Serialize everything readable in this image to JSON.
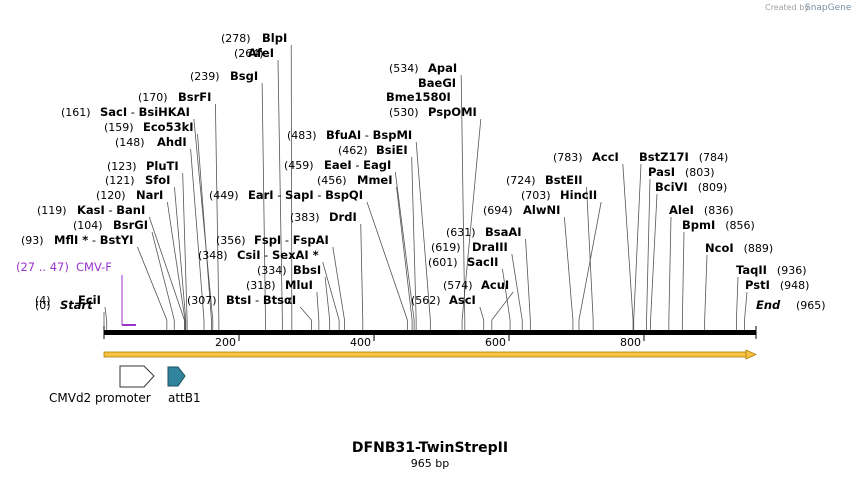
{
  "credit": {
    "created_by": "Created by",
    "brand": "SnapGene"
  },
  "sequence": {
    "name": "DFNB31-TwinStrepII",
    "length_label": "965 bp",
    "length": 965
  },
  "ruler": {
    "ticks": [
      "200",
      "400",
      "600",
      "800"
    ]
  },
  "ends": [
    {
      "pos": "(0)",
      "name": "Start"
    },
    {
      "pos": "(965)",
      "name": "End"
    }
  ],
  "primer": {
    "range": "(27 .. 47)",
    "name": "CMV-F",
    "color": "#9933cc"
  },
  "features": [
    {
      "name": "CMVd2 promoter",
      "fill": "#ffffff",
      "stroke": "#333333"
    },
    {
      "name": "attB1",
      "fill": "#31849b",
      "stroke": "#1a4f5e"
    }
  ],
  "sites_left": [
    {
      "pos": "(278)",
      "names": [
        "BlpI"
      ]
    },
    {
      "pos": "(264)",
      "names": [
        "AfeI"
      ]
    },
    {
      "pos": "(239)",
      "names": [
        "BsgI"
      ]
    },
    {
      "pos": "(170)",
      "names": [
        "BsrFI"
      ]
    },
    {
      "pos": "(161)",
      "names": [
        "SacI",
        "BsiHKAI"
      ]
    },
    {
      "pos": "(159)",
      "names": [
        "Eco53kI"
      ]
    },
    {
      "pos": "(148)",
      "names": [
        "AhdI"
      ]
    },
    {
      "pos": "(123)",
      "names": [
        "PluTI"
      ]
    },
    {
      "pos": "(121)",
      "names": [
        "SfoI"
      ]
    },
    {
      "pos": "(120)",
      "names": [
        "NarI"
      ]
    },
    {
      "pos": "(119)",
      "names": [
        "KasI",
        "BanI"
      ]
    },
    {
      "pos": "(104)",
      "names": [
        "BsrGI"
      ]
    },
    {
      "pos": "(93)",
      "names": [
        "MflI *",
        "BstYI"
      ]
    },
    {
      "pos": "(4)",
      "names": [
        "EciI"
      ]
    }
  ],
  "sites_mid": [
    {
      "pos": "(483)",
      "names": [
        "BfuAI",
        "BspMI"
      ]
    },
    {
      "pos": "(462)",
      "names": [
        "BsiEI"
      ]
    },
    {
      "pos": "(459)",
      "names": [
        "EaeI",
        "EagI"
      ]
    },
    {
      "pos": "(456)",
      "names": [
        "MmeI"
      ]
    },
    {
      "pos": "(449)",
      "names": [
        "EarI",
        "SapI",
        "BspQI"
      ]
    },
    {
      "pos": "(383)",
      "names": [
        "DrdI"
      ]
    },
    {
      "pos": "(356)",
      "names": [
        "FspI",
        "FspAI"
      ]
    },
    {
      "pos": "(348)",
      "names": [
        "CsiI",
        "SexAI *"
      ]
    },
    {
      "pos": "(334)",
      "names": [
        "BbsI"
      ]
    },
    {
      "pos": "(318)",
      "names": [
        "MluI"
      ]
    },
    {
      "pos": "(307)",
      "names": [
        "BtsI",
        "BtsαI"
      ]
    }
  ],
  "sites_right1": [
    {
      "pos": "(534)",
      "names": [
        "ApaI"
      ]
    },
    {
      "pos": "",
      "names": [
        "BaeGI"
      ]
    },
    {
      "pos": "",
      "names": [
        "Bme1580I"
      ]
    },
    {
      "pos": "(530)",
      "names": [
        "PspOMI"
      ]
    },
    {
      "pos": "(631)",
      "names": [
        "BsaAI"
      ]
    },
    {
      "pos": "(619)",
      "names": [
        "DraIII"
      ]
    },
    {
      "pos": "(601)",
      "names": [
        "SacII"
      ]
    },
    {
      "pos": "(574)",
      "names": [
        "AcuI"
      ]
    },
    {
      "pos": "(562)",
      "names": [
        "AscI"
      ]
    }
  ],
  "sites_right2": [
    {
      "pos": "(783)",
      "names": [
        "AccI"
      ]
    },
    {
      "pos": "(724)",
      "names": [
        "BstEII"
      ]
    },
    {
      "pos": "(703)",
      "names": [
        "HincII"
      ]
    },
    {
      "pos": "(694)",
      "names": [
        "AlwNI"
      ]
    }
  ],
  "sites_far": [
    {
      "pos": "(784)",
      "names": [
        "BstZ17I"
      ]
    },
    {
      "pos": "(803)",
      "names": [
        "PasI"
      ]
    },
    {
      "pos": "(809)",
      "names": [
        "BciVI"
      ]
    },
    {
      "pos": "(836)",
      "names": [
        "AleI"
      ]
    },
    {
      "pos": "(856)",
      "names": [
        "BpmI"
      ]
    },
    {
      "pos": "(889)",
      "names": [
        "NcoI"
      ]
    },
    {
      "pos": "(936)",
      "names": [
        "TaqII"
      ]
    },
    {
      "pos": "(948)",
      "names": [
        "PstI"
      ]
    }
  ],
  "colors": {
    "backbone": "#000000",
    "orf_fill": "#f5c242",
    "orf_stroke": "#b07c00",
    "leader": "#555555"
  }
}
